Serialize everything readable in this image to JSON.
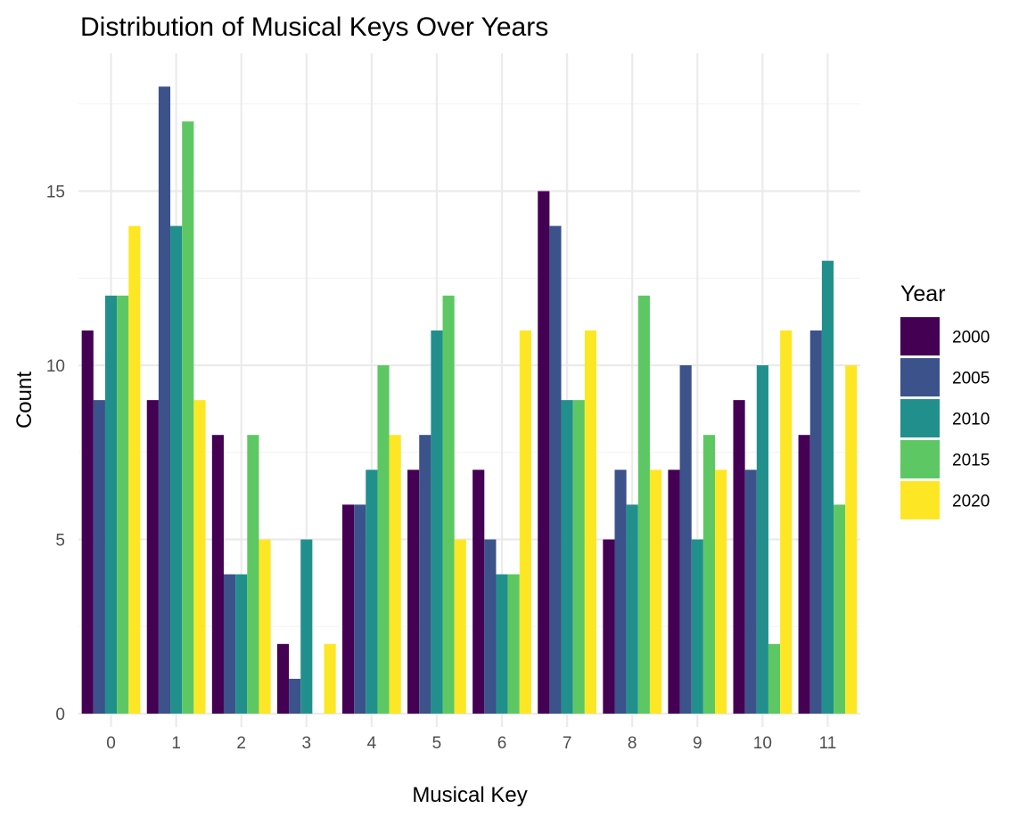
{
  "chart_data": {
    "type": "bar",
    "title": "Distribution of Musical Keys Over Years",
    "xlabel": "Musical Key",
    "ylabel": "Count",
    "categories": [
      "0",
      "1",
      "2",
      "3",
      "4",
      "5",
      "6",
      "7",
      "8",
      "9",
      "10",
      "11"
    ],
    "ylim": [
      0,
      18
    ],
    "yticks": [
      0,
      5,
      10,
      15
    ],
    "grid": true,
    "legend": {
      "title": "Year",
      "position": "right"
    },
    "series": [
      {
        "name": "2000",
        "color": "#440154",
        "values": [
          11,
          9,
          8,
          2,
          6,
          7,
          7,
          15,
          5,
          7,
          9,
          8
        ]
      },
      {
        "name": "2005",
        "color": "#3B528B",
        "values": [
          9,
          18,
          4,
          1,
          6,
          8,
          5,
          14,
          7,
          10,
          7,
          11
        ]
      },
      {
        "name": "2010",
        "color": "#21908C",
        "values": [
          12,
          14,
          4,
          5,
          7,
          11,
          4,
          9,
          6,
          5,
          10,
          13
        ]
      },
      {
        "name": "2015",
        "color": "#5DC863",
        "values": [
          12,
          17,
          8,
          0,
          10,
          12,
          4,
          9,
          12,
          8,
          2,
          6
        ]
      },
      {
        "name": "2020",
        "color": "#FDE725",
        "values": [
          14,
          9,
          5,
          2,
          8,
          5,
          11,
          11,
          7,
          7,
          11,
          10
        ]
      }
    ]
  }
}
